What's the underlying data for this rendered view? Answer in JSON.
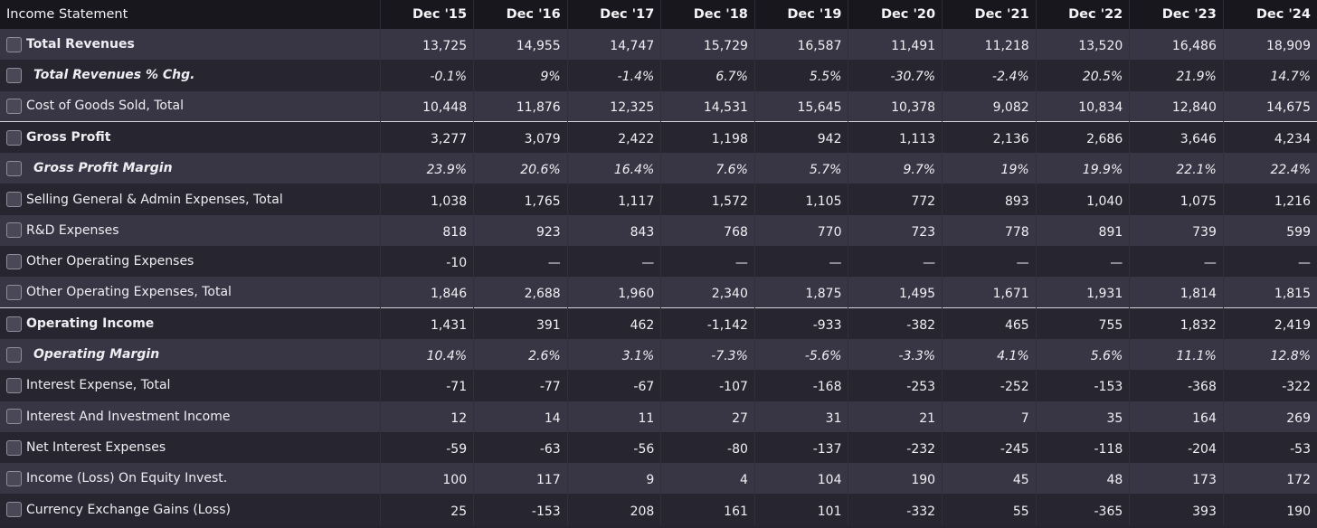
{
  "table": {
    "header_label": "Income Statement",
    "columns": [
      "Dec '15",
      "Dec '16",
      "Dec '17",
      "Dec '18",
      "Dec '19",
      "Dec '20",
      "Dec '21",
      "Dec '22",
      "Dec '23",
      "Dec '24"
    ],
    "rows": [
      {
        "label": "Total Revenues",
        "style": "bold",
        "values": [
          "13,725",
          "14,955",
          "14,747",
          "15,729",
          "16,587",
          "11,491",
          "11,218",
          "13,520",
          "16,486",
          "18,909"
        ]
      },
      {
        "label": "Total Revenues % Chg.",
        "style": "italic",
        "values": [
          "-0.1%",
          "9%",
          "-1.4%",
          "6.7%",
          "5.5%",
          "-30.7%",
          "-2.4%",
          "20.5%",
          "21.9%",
          "14.7%"
        ]
      },
      {
        "label": "Cost of Goods Sold, Total",
        "style": "normal",
        "values": [
          "10,448",
          "11,876",
          "12,325",
          "14,531",
          "15,645",
          "10,378",
          "9,082",
          "10,834",
          "12,840",
          "14,675"
        ]
      },
      {
        "label": "Gross Profit",
        "style": "bold",
        "separator": true,
        "values": [
          "3,277",
          "3,079",
          "2,422",
          "1,198",
          "942",
          "1,113",
          "2,136",
          "2,686",
          "3,646",
          "4,234"
        ]
      },
      {
        "label": "Gross Profit Margin",
        "style": "italic",
        "values": [
          "23.9%",
          "20.6%",
          "16.4%",
          "7.6%",
          "5.7%",
          "9.7%",
          "19%",
          "19.9%",
          "22.1%",
          "22.4%"
        ]
      },
      {
        "label": "Selling General & Admin Expenses, Total",
        "style": "normal",
        "values": [
          "1,038",
          "1,765",
          "1,117",
          "1,572",
          "1,105",
          "772",
          "893",
          "1,040",
          "1,075",
          "1,216"
        ]
      },
      {
        "label": "R&D Expenses",
        "style": "normal",
        "values": [
          "818",
          "923",
          "843",
          "768",
          "770",
          "723",
          "778",
          "891",
          "739",
          "599"
        ]
      },
      {
        "label": "Other Operating Expenses",
        "style": "normal",
        "values": [
          "-10",
          "—",
          "—",
          "—",
          "—",
          "—",
          "—",
          "—",
          "—",
          "—"
        ]
      },
      {
        "label": "Other Operating Expenses, Total",
        "style": "normal",
        "values": [
          "1,846",
          "2,688",
          "1,960",
          "2,340",
          "1,875",
          "1,495",
          "1,671",
          "1,931",
          "1,814",
          "1,815"
        ]
      },
      {
        "label": "Operating Income",
        "style": "bold",
        "separator": true,
        "values": [
          "1,431",
          "391",
          "462",
          "-1,142",
          "-933",
          "-382",
          "465",
          "755",
          "1,832",
          "2,419"
        ]
      },
      {
        "label": "Operating Margin",
        "style": "italic",
        "values": [
          "10.4%",
          "2.6%",
          "3.1%",
          "-7.3%",
          "-5.6%",
          "-3.3%",
          "4.1%",
          "5.6%",
          "11.1%",
          "12.8%"
        ]
      },
      {
        "label": "Interest Expense, Total",
        "style": "normal",
        "values": [
          "-71",
          "-77",
          "-67",
          "-107",
          "-168",
          "-253",
          "-252",
          "-153",
          "-368",
          "-322"
        ]
      },
      {
        "label": "Interest And Investment Income",
        "style": "normal",
        "values": [
          "12",
          "14",
          "11",
          "27",
          "31",
          "21",
          "7",
          "35",
          "164",
          "269"
        ]
      },
      {
        "label": "Net Interest Expenses",
        "style": "normal",
        "values": [
          "-59",
          "-63",
          "-56",
          "-80",
          "-137",
          "-232",
          "-245",
          "-118",
          "-204",
          "-53"
        ]
      },
      {
        "label": "Income (Loss) On Equity Invest.",
        "style": "normal",
        "values": [
          "100",
          "117",
          "9",
          "4",
          "104",
          "190",
          "45",
          "48",
          "173",
          "172"
        ]
      },
      {
        "label": "Currency Exchange Gains (Loss)",
        "style": "normal",
        "values": [
          "25",
          "-153",
          "208",
          "161",
          "101",
          "-332",
          "55",
          "-365",
          "393",
          "190"
        ]
      }
    ]
  },
  "colors": {
    "header_bg": "#17171d",
    "row_odd": "#383644",
    "row_even": "#262530",
    "text": "#f0f0f4"
  },
  "icons": {
    "row_select": "checkbox-icon"
  }
}
